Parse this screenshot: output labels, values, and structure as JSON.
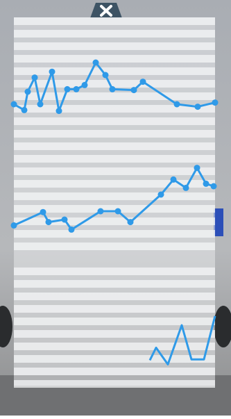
{
  "chart_data": [
    {
      "type": "line",
      "color": "#2f9ae8",
      "xlim": [
        20,
        310
      ],
      "ylim": [
        0,
        100
      ],
      "x": [
        20,
        35,
        40,
        50,
        58,
        75,
        85,
        97,
        110,
        122,
        138,
        152,
        162,
        193,
        206,
        255,
        285,
        310
      ],
      "values": [
        25,
        18,
        40,
        57,
        25,
        64,
        17,
        43,
        43,
        48,
        75,
        60,
        43,
        42,
        52,
        25,
        22,
        27
      ]
    },
    {
      "type": "line",
      "color": "#2f9ae8",
      "xlim": [
        20,
        310
      ],
      "ylim": [
        0,
        100
      ],
      "x": [
        20,
        62,
        70,
        93,
        103,
        145,
        170,
        188,
        232,
        250,
        268,
        284,
        297,
        308
      ],
      "values": [
        13,
        29,
        17,
        20,
        8,
        30,
        30,
        17,
        50,
        68,
        58,
        82,
        63,
        60
      ]
    },
    {
      "type": "line",
      "color": "#2f9ae8",
      "xlim": [
        20,
        310
      ],
      "ylim": [
        0,
        100
      ],
      "x": [
        216,
        225,
        242,
        262,
        276,
        294,
        310
      ],
      "values": [
        18,
        33,
        13,
        60,
        19,
        19,
        71
      ]
    }
  ]
}
